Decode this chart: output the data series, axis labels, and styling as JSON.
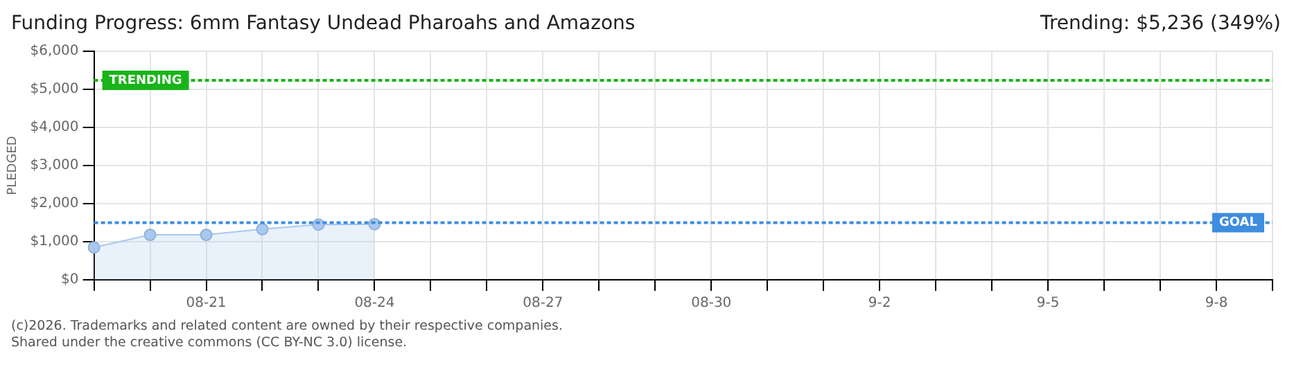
{
  "chart_data": {
    "type": "area",
    "title": "Funding Progress: 6mm Fantasy Undead Pharoahs and Amazons",
    "subtitle": "Trending: $5,236 (349%)",
    "ylabel": "PLEDGED",
    "categories": [
      null,
      null,
      "08-21",
      null,
      null,
      "08-24",
      null,
      null,
      "08-27",
      null,
      null,
      "08-30",
      null,
      null,
      "9-2",
      null,
      null,
      "9-5",
      null,
      null,
      "9-8",
      null
    ],
    "series": [
      {
        "color": "#a8c8f0",
        "values": [
          850,
          1180,
          1180,
          1330,
          1450,
          1460,
          null,
          null,
          null,
          null,
          null,
          null,
          null,
          null,
          null,
          null,
          null,
          null,
          null,
          null,
          null,
          null
        ]
      }
    ],
    "ylim": [
      0,
      6000
    ],
    "yticks": [
      {
        "value": 0,
        "label": "$0"
      },
      {
        "value": 1000,
        "label": "$1,000"
      },
      {
        "value": 2000,
        "label": "$2,000"
      },
      {
        "value": 3000,
        "label": "$3,000"
      },
      {
        "value": 4000,
        "label": "$4,000"
      },
      {
        "value": 5000,
        "label": "$5,000"
      },
      {
        "value": 6000,
        "label": "$6,000"
      }
    ],
    "ref_lines": [
      {
        "axis": "y",
        "value": 5236,
        "label": "TRENDING",
        "color": "#19b419",
        "line_style": "dotted"
      },
      {
        "axis": "y",
        "value": 1500,
        "label": "GOAL",
        "color": "#3d8de0",
        "line_style": "dotted"
      }
    ],
    "annotations": [
      "(c)2026. Trademarks and related content are owned by their respective companies.",
      "Shared under the creative commons (CC BY-NC 3.0) license."
    ],
    "grid": true,
    "marker": "circle",
    "legend": false
  }
}
